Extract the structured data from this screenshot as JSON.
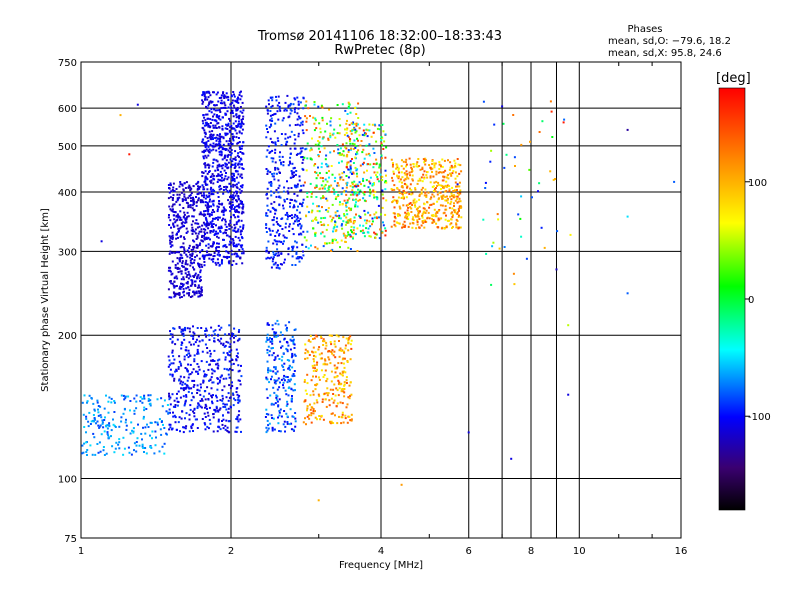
{
  "chart_data": {
    "type": "scatter",
    "title": "Tromsø 20141106 18:32:00–18:33:43",
    "subtitle": "RwPretec (8p)",
    "xlabel": "Frequency [MHz]",
    "ylabel": "Stationary phase Virtual Height [km]",
    "x_scale": "log",
    "y_scale": "log",
    "xlim": [
      1,
      16
    ],
    "ylim": [
      75,
      750
    ],
    "x_ticks": [
      1,
      2,
      4,
      6,
      8,
      10,
      16
    ],
    "y_ticks": [
      75,
      100,
      200,
      300,
      400,
      500,
      600,
      750
    ],
    "grid": true,
    "phase_legend": {
      "title": "Phases",
      "line1": "mean, sd,O: −79.6, 18.2",
      "line2": "mean, sd,X:  95.8, 24.6"
    },
    "colorbar": {
      "unit": "[deg]",
      "range": [
        -180,
        180
      ],
      "ticks": [
        100,
        0,
        -100
      ]
    },
    "clusters": [
      {
        "x": [
          1.75,
          2.12
        ],
        "y": [
          280,
          650
        ],
        "phase": [
          -120,
          -95
        ],
        "density": 1.0
      },
      {
        "x": [
          1.5,
          1.75
        ],
        "y": [
          240,
          420
        ],
        "phase": [
          -125,
          -105
        ],
        "density": 0.5
      },
      {
        "x": [
          2.35,
          2.8
        ],
        "y": [
          275,
          640
        ],
        "phase": [
          -115,
          -80
        ],
        "density": 0.45
      },
      {
        "x": [
          2.8,
          3.6
        ],
        "y": [
          300,
          620
        ],
        "phase": [
          -90,
          150
        ],
        "density": 0.4
      },
      {
        "x": [
          3.4,
          4.1
        ],
        "y": [
          320,
          560
        ],
        "phase": [
          -100,
          170
        ],
        "density": 0.3
      },
      {
        "x": [
          4.2,
          5.8
        ],
        "y": [
          335,
          470
        ],
        "phase": [
          60,
          150
        ],
        "density": 0.55
      },
      {
        "x": [
          1.5,
          2.1
        ],
        "y": [
          125,
          210
        ],
        "phase": [
          -120,
          -85
        ],
        "density": 0.55
      },
      {
        "x": [
          1.0,
          1.5
        ],
        "y": [
          112,
          150
        ],
        "phase": [
          -90,
          -50
        ],
        "density": 0.25
      },
      {
        "x": [
          2.35,
          2.7
        ],
        "y": [
          125,
          215
        ],
        "phase": [
          -110,
          -60
        ],
        "density": 0.25
      },
      {
        "x": [
          2.8,
          3.5
        ],
        "y": [
          130,
          200
        ],
        "phase": [
          70,
          150
        ],
        "density": 0.3
      },
      {
        "x": [
          6.3,
          9.5
        ],
        "y": [
          250,
          620
        ],
        "phase": [
          -110,
          140
        ],
        "density": 0.05
      }
    ],
    "points": [
      {
        "x": 5.7,
        "y": 415,
        "phase": -110
      },
      {
        "x": 5.6,
        "y": 390,
        "phase": 130
      },
      {
        "x": 5.5,
        "y": 445,
        "phase": 90
      },
      {
        "x": 5.2,
        "y": 395,
        "phase": 120
      },
      {
        "x": 4.7,
        "y": 355,
        "phase": 110
      },
      {
        "x": 9.5,
        "y": 150,
        "phase": -110
      },
      {
        "x": 9.5,
        "y": 210,
        "phase": 50
      },
      {
        "x": 7.3,
        "y": 110,
        "phase": -110
      },
      {
        "x": 6.0,
        "y": 125,
        "phase": -110
      },
      {
        "x": 4.4,
        "y": 97,
        "phase": 110
      },
      {
        "x": 3.0,
        "y": 90,
        "phase": 100
      },
      {
        "x": 12.5,
        "y": 540,
        "phase": -130
      },
      {
        "x": 12.5,
        "y": 355,
        "phase": -50
      },
      {
        "x": 12.5,
        "y": 245,
        "phase": -80
      },
      {
        "x": 15.5,
        "y": 420,
        "phase": -80
      },
      {
        "x": 1.3,
        "y": 610,
        "phase": -110
      },
      {
        "x": 1.2,
        "y": 580,
        "phase": 100
      },
      {
        "x": 1.25,
        "y": 480,
        "phase": 170
      },
      {
        "x": 1.1,
        "y": 315,
        "phase": -110
      },
      {
        "x": 7.0,
        "y": 605,
        "phase": -110
      },
      {
        "x": 8.8,
        "y": 590,
        "phase": 160
      },
      {
        "x": 9.3,
        "y": 560,
        "phase": 170
      },
      {
        "x": 9.6,
        "y": 325,
        "phase": 70
      },
      {
        "x": 9.0,
        "y": 275,
        "phase": -120
      }
    ]
  }
}
